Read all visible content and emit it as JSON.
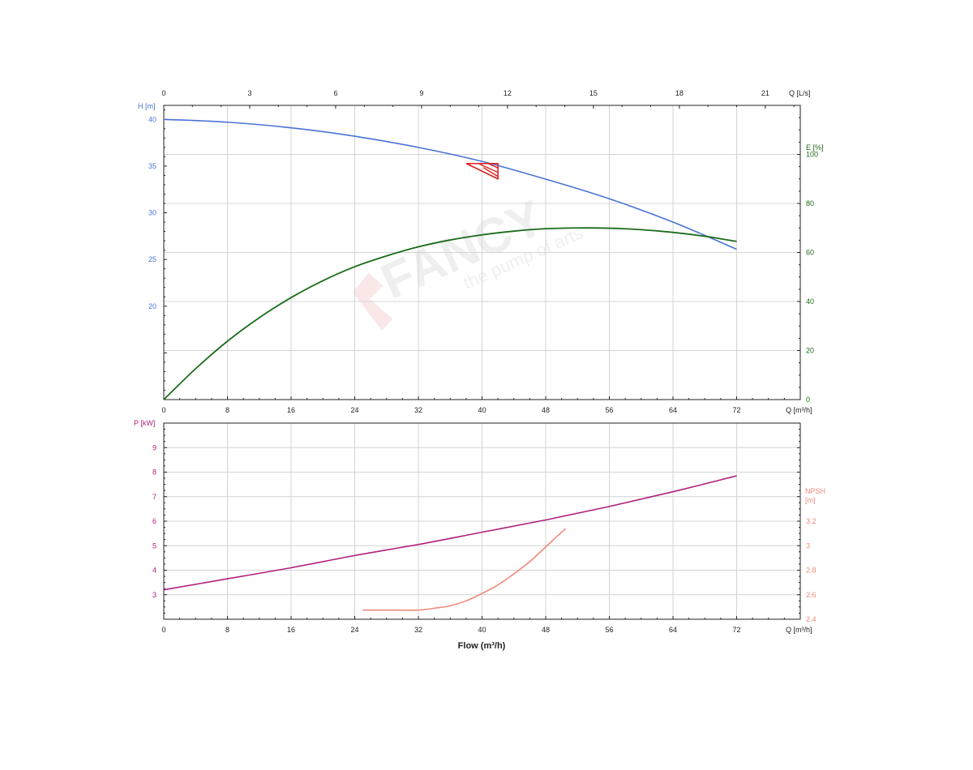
{
  "logo": {
    "brand": "FANCY",
    "tagline": "the pump of arts"
  },
  "colors": {
    "head": "#4a72d6",
    "efficiency": "#1b6b1b",
    "power": "#b0207e",
    "npsh": "#f08a7a",
    "duty_marker": "#e02020",
    "grid": "#d4d4d4",
    "axis": "#222222"
  },
  "chart_data": [
    {
      "type": "line",
      "panel": "top",
      "x_axis": {
        "label": "Q [m³/h]",
        "range": [
          0,
          80
        ],
        "ticks": [
          0,
          8,
          16,
          24,
          32,
          40,
          48,
          56,
          64,
          72
        ]
      },
      "x2_axis": {
        "label": "Q [L/s]",
        "range": [
          0,
          22.222
        ],
        "ticks": [
          0,
          3,
          6,
          9,
          12,
          15,
          18,
          21
        ]
      },
      "y_axis": {
        "label": "H [m]",
        "range": [
          10,
          41.5
        ],
        "ticks": [
          20,
          25,
          30,
          35,
          40
        ]
      },
      "y2_axis": {
        "label": "E [%]",
        "range": [
          0,
          120
        ],
        "ticks": [
          0,
          20,
          40,
          60,
          80,
          100
        ]
      },
      "grid": true,
      "series": [
        {
          "key": "head",
          "axis": "y",
          "color": "#4a72d6",
          "x": [
            0,
            8,
            16,
            24,
            32,
            40,
            48,
            56,
            64,
            72
          ],
          "y": [
            40.0,
            39.7,
            39.1,
            38.2,
            37.0,
            35.5,
            33.6,
            31.5,
            29.0,
            26.1
          ]
        },
        {
          "key": "efficiency",
          "axis": "y2",
          "color": "#1b6b1b",
          "x": [
            0,
            4,
            8,
            12,
            16,
            20,
            24,
            28,
            32,
            36,
            40,
            44,
            48,
            52,
            56,
            60,
            64,
            68,
            72
          ],
          "y": [
            0,
            12.6,
            23.8,
            33.4,
            41.6,
            48.5,
            54.2,
            58.6,
            62.3,
            65.1,
            67.2,
            68.7,
            69.7,
            70.0,
            69.9,
            69.3,
            68.2,
            66.6,
            64.5
          ]
        }
      ],
      "duty_point": {
        "flow": 42,
        "head": 35.1
      }
    },
    {
      "type": "line",
      "panel": "bottom",
      "x_axis": {
        "label": "Q [m³/h]",
        "title": "Flow (m³/h)",
        "range": [
          0,
          80
        ],
        "ticks": [
          0,
          8,
          16,
          24,
          32,
          40,
          48,
          56,
          64,
          72
        ]
      },
      "y_axis": {
        "label": "P [kW]",
        "range": [
          2,
          10
        ],
        "ticks": [
          3,
          4,
          5,
          6,
          7,
          8,
          9
        ]
      },
      "y2_axis": {
        "label_line1": "NPSH",
        "label_line2": "[m]",
        "range": [
          2.4,
          4.0
        ],
        "ticks": [
          2.4,
          2.6,
          2.8,
          3,
          3.2
        ]
      },
      "grid": true,
      "series": [
        {
          "key": "power",
          "axis": "y",
          "color": "#b0207e",
          "x": [
            0,
            8,
            16,
            24,
            32,
            40,
            48,
            56,
            64,
            72
          ],
          "y": [
            3.2,
            3.65,
            4.1,
            4.6,
            5.05,
            5.55,
            6.05,
            6.6,
            7.2,
            7.85
          ]
        },
        {
          "key": "npsh",
          "axis": "y2",
          "color": "#f08a7a",
          "x": [
            25,
            28,
            32,
            34,
            36,
            38,
            40,
            42,
            44,
            46,
            48,
            50.5
          ],
          "y": [
            2.475,
            2.475,
            2.475,
            2.49,
            2.51,
            2.55,
            2.61,
            2.68,
            2.77,
            2.87,
            2.99,
            3.14
          ]
        }
      ]
    }
  ]
}
